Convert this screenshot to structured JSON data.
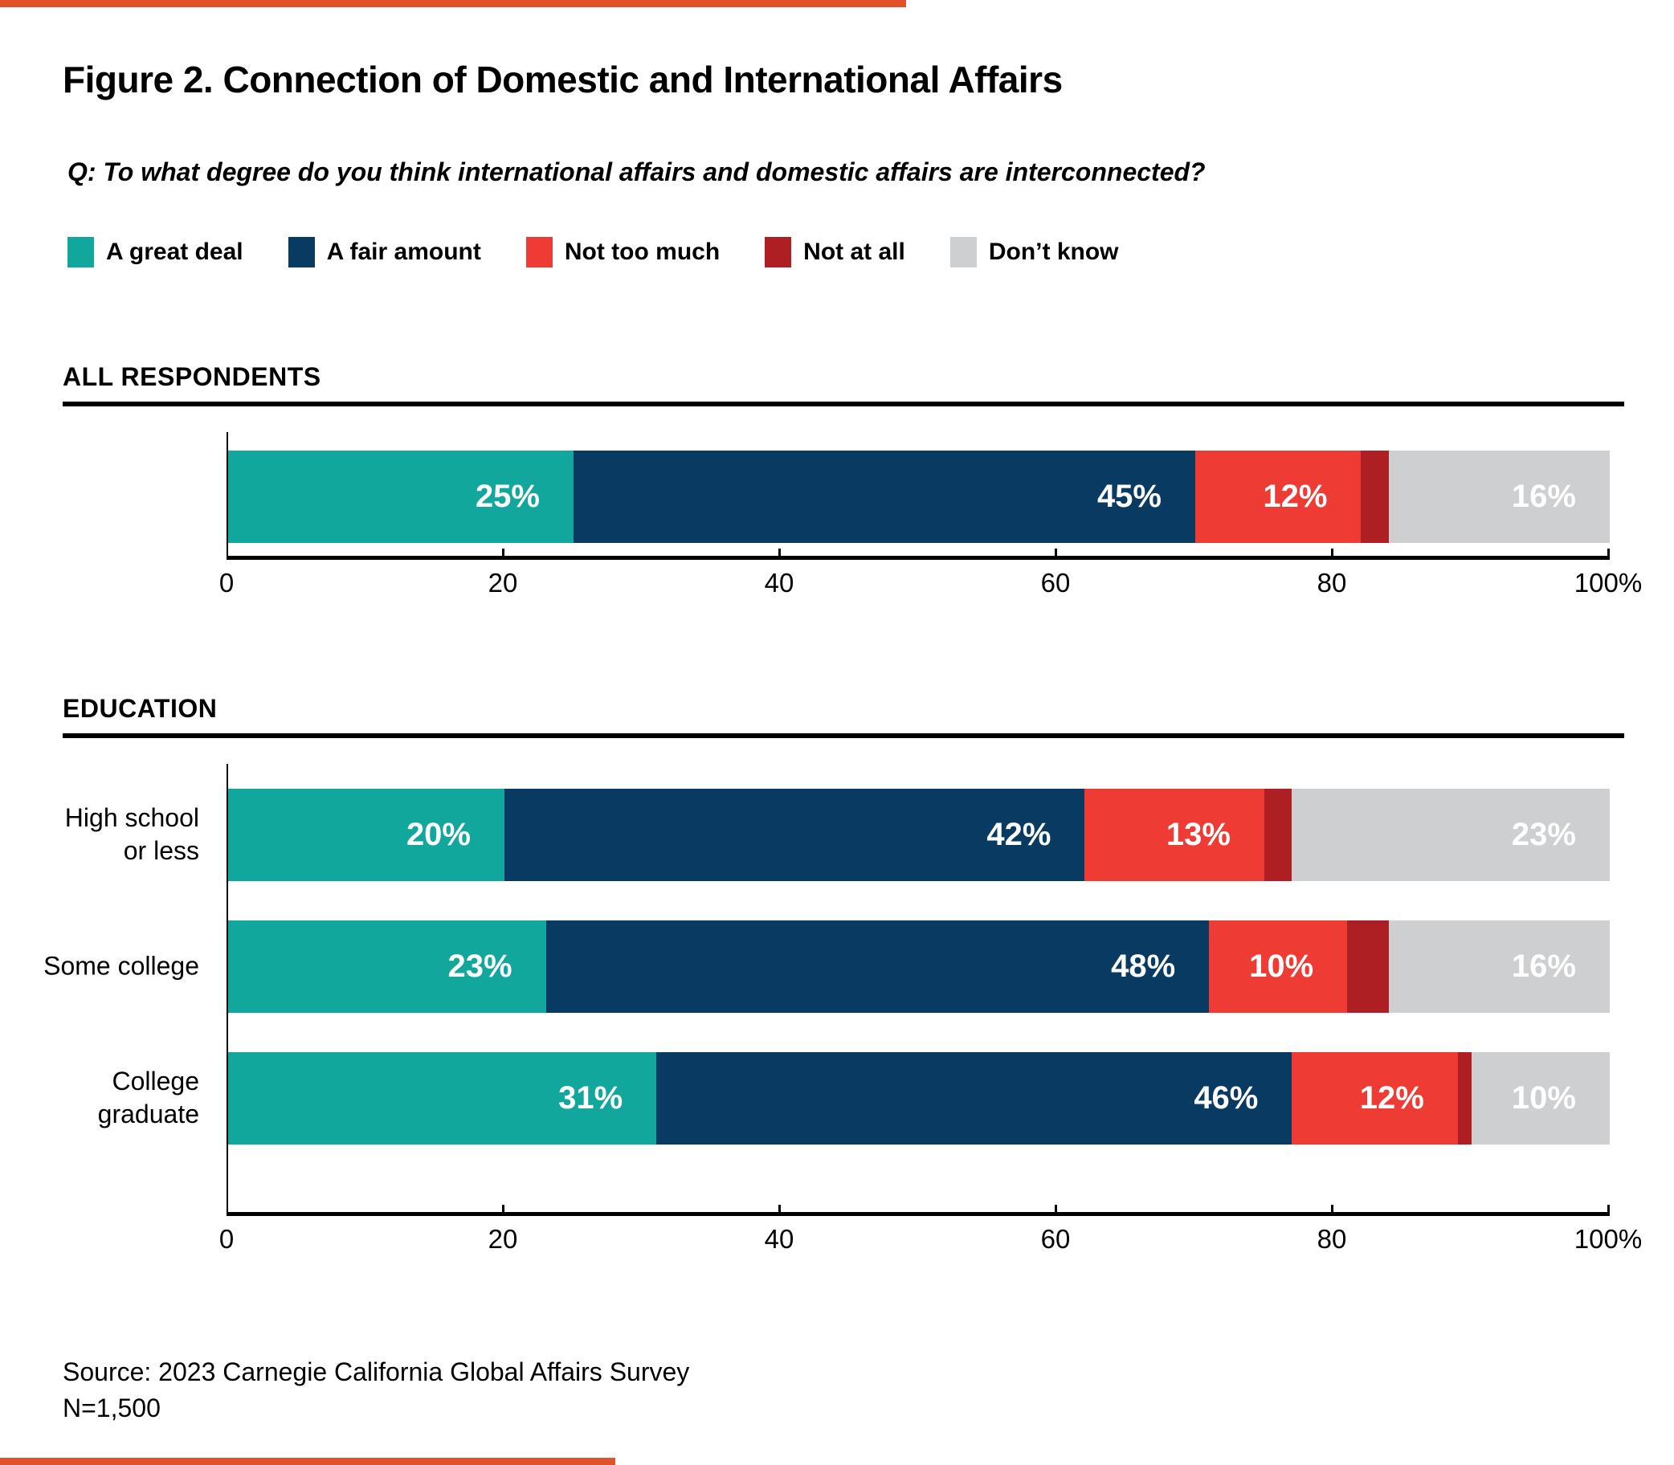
{
  "accent_color": "#E0512C",
  "header": {
    "title": "Figure 2. Connection of Domestic and International Affairs",
    "question": "Q: To what degree do you think international affairs and domestic affairs are interconnected?"
  },
  "legend": {
    "position": "top",
    "items": [
      {
        "label": "A great deal",
        "color": "#12A79C"
      },
      {
        "label": "A fair amount",
        "color": "#093A62"
      },
      {
        "label": "Not too much",
        "color": "#EE3B33"
      },
      {
        "label": "Not at all",
        "color": "#AE1F24"
      },
      {
        "label": "Don’t know",
        "color": "#CDCFD0"
      }
    ]
  },
  "chart_data": {
    "type": "bar",
    "orientation": "horizontal",
    "stacked": true,
    "unit": "percent",
    "title": "Figure 2. Connection of Domestic and International Affairs",
    "xlabel": "",
    "ylabel": "",
    "xlim": [
      0,
      100
    ],
    "grid": false,
    "x_ticks": [
      0,
      20,
      40,
      60,
      80,
      100
    ],
    "x_tick_labels": [
      "0",
      "20",
      "40",
      "60",
      "80",
      "100%"
    ],
    "series_names": [
      "A great deal",
      "A fair amount",
      "Not too much",
      "Not at all",
      "Don't know"
    ],
    "series_colors": [
      "#12A79C",
      "#093A62",
      "#EE3B33",
      "#AE1F24",
      "#CDCFD0"
    ],
    "groups": [
      {
        "title": "ALL RESPONDENTS",
        "rows": [
          {
            "label": "",
            "values": [
              25,
              45,
              12,
              2,
              16
            ],
            "value_labels": [
              "25%",
              "45%",
              "12%",
              "",
              "16%"
            ]
          }
        ]
      },
      {
        "title": "EDUCATION",
        "rows": [
          {
            "label": "High school\nor less",
            "values": [
              20,
              42,
              13,
              2,
              23
            ],
            "value_labels": [
              "20%",
              "42%",
              "13%",
              "",
              "23%"
            ]
          },
          {
            "label": "Some college",
            "values": [
              23,
              48,
              10,
              3,
              16
            ],
            "value_labels": [
              "23%",
              "48%",
              "10%",
              "",
              "16%"
            ]
          },
          {
            "label": "College\ngraduate",
            "values": [
              31,
              46,
              12,
              1,
              10
            ],
            "value_labels": [
              "31%",
              "46%",
              "12%",
              "",
              "10%"
            ]
          }
        ]
      }
    ]
  },
  "footer": {
    "source": "Source: 2023 Carnegie California Global Affairs Survey",
    "n": "N=1,500"
  }
}
